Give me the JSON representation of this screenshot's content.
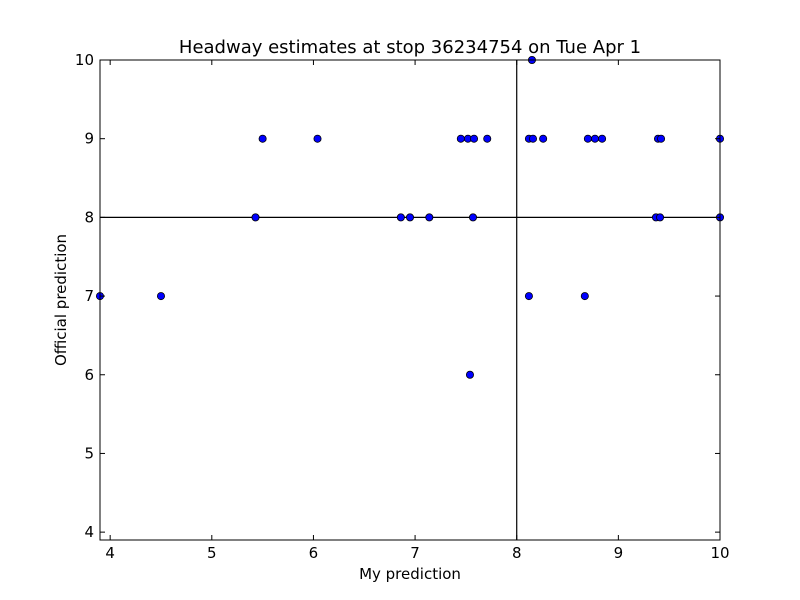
{
  "chart_data": {
    "type": "scatter",
    "title": "Headway estimates at stop 36234754 on Tue Apr 1",
    "xlabel": "My prediction",
    "ylabel": "Official prediction",
    "xlim": [
      3.9,
      10
    ],
    "ylim": [
      3.9,
      10
    ],
    "xticks": [
      4,
      5,
      6,
      7,
      8,
      9,
      10
    ],
    "yticks": [
      4,
      5,
      6,
      7,
      8,
      9,
      10
    ],
    "reference_lines": {
      "x": 8,
      "y": 8
    },
    "grid": false,
    "colors": {
      "marker": "#0000ff",
      "marker_edge": "#000000",
      "lines": "#000000"
    },
    "points": [
      {
        "x": 3.9,
        "y": 7
      },
      {
        "x": 4.5,
        "y": 7
      },
      {
        "x": 5.43,
        "y": 8
      },
      {
        "x": 5.5,
        "y": 9
      },
      {
        "x": 6.04,
        "y": 9
      },
      {
        "x": 6.86,
        "y": 8
      },
      {
        "x": 6.95,
        "y": 8
      },
      {
        "x": 7.14,
        "y": 8
      },
      {
        "x": 7.45,
        "y": 9
      },
      {
        "x": 7.52,
        "y": 9
      },
      {
        "x": 7.58,
        "y": 9
      },
      {
        "x": 7.71,
        "y": 9
      },
      {
        "x": 7.57,
        "y": 8
      },
      {
        "x": 7.54,
        "y": 6
      },
      {
        "x": 8.12,
        "y": 9
      },
      {
        "x": 8.16,
        "y": 9
      },
      {
        "x": 8.26,
        "y": 9
      },
      {
        "x": 8.15,
        "y": 10
      },
      {
        "x": 8.12,
        "y": 7
      },
      {
        "x": 8.67,
        "y": 7
      },
      {
        "x": 8.7,
        "y": 9
      },
      {
        "x": 8.77,
        "y": 9
      },
      {
        "x": 8.84,
        "y": 9
      },
      {
        "x": 9.39,
        "y": 9
      },
      {
        "x": 9.42,
        "y": 9
      },
      {
        "x": 9.37,
        "y": 8
      },
      {
        "x": 9.41,
        "y": 8
      },
      {
        "x": 10.0,
        "y": 9
      },
      {
        "x": 10.0,
        "y": 8
      }
    ]
  }
}
